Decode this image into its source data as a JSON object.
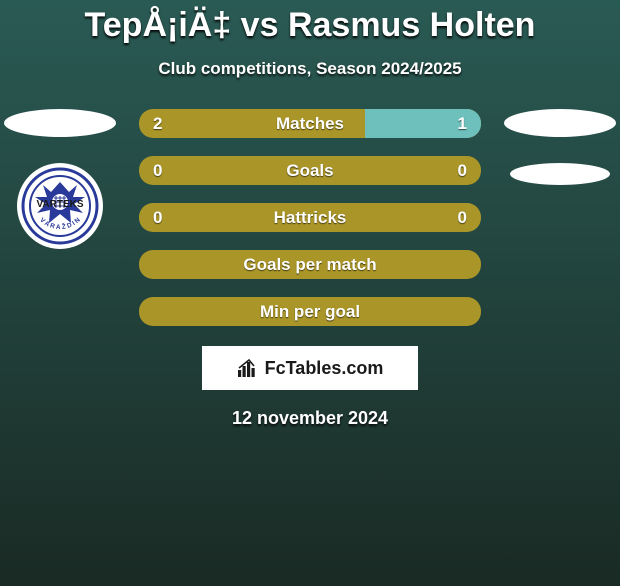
{
  "title": "TepÅ¡iÄ‡ vs Rasmus Holten",
  "subtitle": "Club competitions, Season 2024/2025",
  "background_colors": {
    "top": "#2a5a54",
    "bottom": "#1a2a24"
  },
  "bar_style": {
    "base_color": "#a99528",
    "fill_color": "#6ec0bc",
    "height": 29,
    "radius": 14,
    "gap": 18,
    "font_size": 17,
    "text_color": "#ffffff"
  },
  "bars": [
    {
      "label": "Matches",
      "left": "2",
      "right": "1",
      "left_pct": 0,
      "right_pct": 34
    },
    {
      "label": "Goals",
      "left": "0",
      "right": "0",
      "left_pct": 0,
      "right_pct": 0
    },
    {
      "label": "Hattricks",
      "left": "0",
      "right": "0",
      "left_pct": 0,
      "right_pct": 0
    },
    {
      "label": "Goals per match",
      "left": "",
      "right": "",
      "left_pct": 0,
      "right_pct": 0
    },
    {
      "label": "Min per goal",
      "left": "",
      "right": "",
      "left_pct": 0,
      "right_pct": 0
    }
  ],
  "left_team": {
    "logo_text": "VARTEKS",
    "logo_subtext": "VARAŽDIN",
    "logo_ring": "#2a3a9a"
  },
  "attribution": "FcTables.com",
  "date": "12 november 2024"
}
